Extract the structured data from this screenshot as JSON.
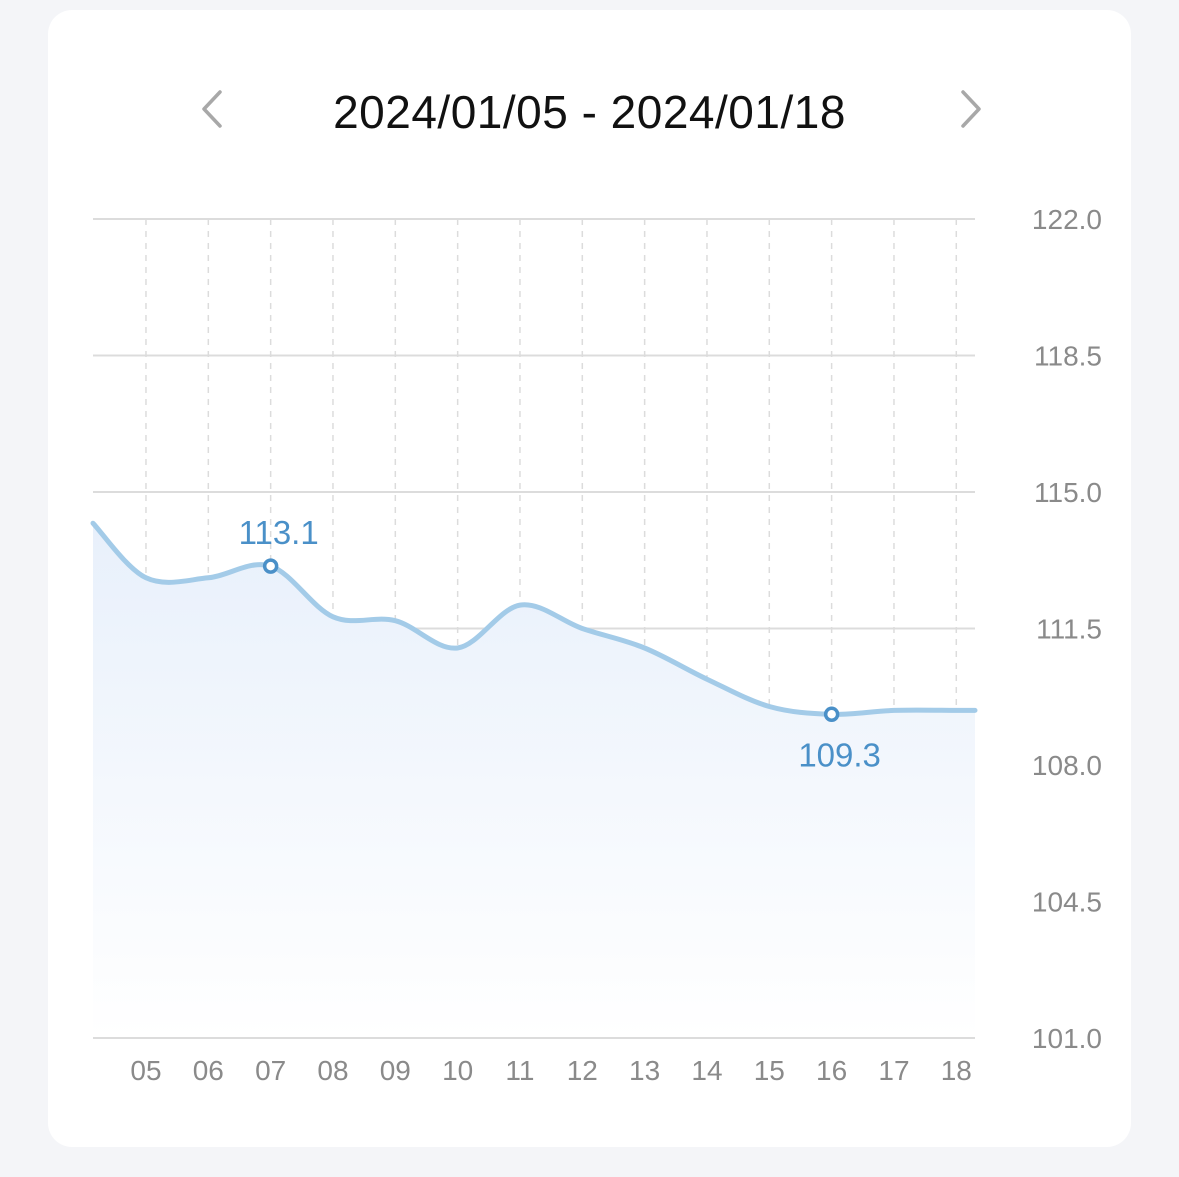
{
  "header": {
    "date_range": "2024/01/05 - 2024/01/18",
    "prev_icon": "chevron-left-icon",
    "next_icon": "chevron-right-icon"
  },
  "colors": {
    "line": "#a3cbe8",
    "marker": "#4a90c8",
    "fill_top": "#e8f0fb",
    "fill_bottom": "#ffffff",
    "grid": "#dcdcdc",
    "tick_text": "#8a8a8a"
  },
  "chart_data": {
    "type": "area",
    "title": "",
    "xlabel": "",
    "ylabel": "",
    "categories": [
      "05",
      "06",
      "07",
      "08",
      "09",
      "10",
      "11",
      "12",
      "13",
      "14",
      "15",
      "16",
      "17",
      "18"
    ],
    "x": [
      4.15,
      5,
      6,
      7,
      8,
      9,
      10,
      11,
      12,
      13,
      14,
      15,
      16,
      17,
      18,
      18.3
    ],
    "series": [
      {
        "values": [
          114.2,
          112.8,
          112.8,
          113.1,
          111.8,
          111.7,
          111.0,
          112.1,
          111.5,
          111.0,
          110.2,
          109.5,
          109.3,
          109.4,
          109.4,
          109.4
        ]
      }
    ],
    "highlights": [
      {
        "x": 7,
        "label": "113.1",
        "position": "above"
      },
      {
        "x": 16,
        "label": "109.3",
        "position": "below"
      }
    ],
    "y_ticks": [
      "122.0",
      "118.5",
      "115.0",
      "111.5",
      "108.0",
      "104.5",
      "101.0"
    ],
    "ylim": [
      101.0,
      122.0
    ],
    "xlim": [
      4.15,
      18.3
    ],
    "y_axis_position": "right",
    "grid": true
  }
}
